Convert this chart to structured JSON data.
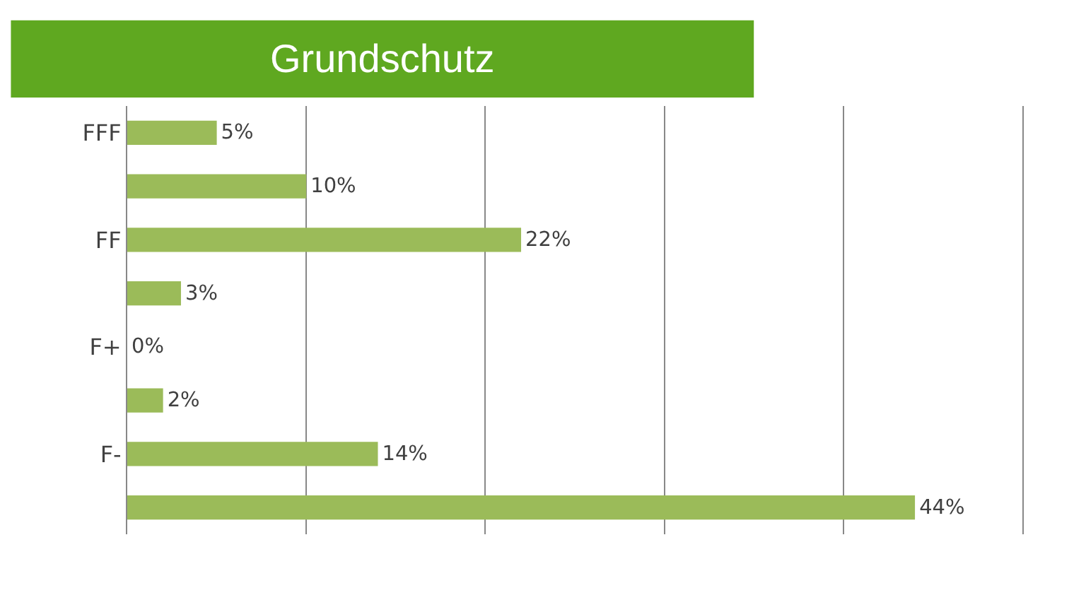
{
  "chart_data": {
    "type": "bar",
    "orientation": "horizontal",
    "title": "Grundschutz",
    "categories": [
      "FFF",
      null,
      "FF",
      null,
      "F+",
      null,
      "F-",
      null
    ],
    "values": [
      5,
      10,
      22,
      3,
      0,
      2,
      14,
      44
    ],
    "value_labels": [
      "5%",
      "10%",
      "22%",
      "3%",
      "0%",
      "2%",
      "14%",
      "44%"
    ],
    "color": "#9bbb59",
    "xlim": [
      0,
      50
    ],
    "xticks": [
      {
        "value": 0,
        "label": null
      },
      {
        "value": 10,
        "label": null
      },
      {
        "value": 20,
        "label": null
      },
      {
        "value": 30,
        "label": null
      },
      {
        "value": 40,
        "label": null
      },
      {
        "value": 50,
        "label": null
      }
    ],
    "tick_labels": "y",
    "grid": "x",
    "legend": false
  }
}
